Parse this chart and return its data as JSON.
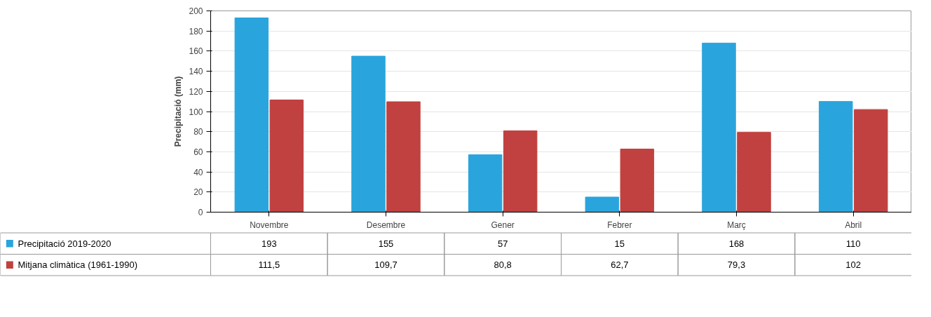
{
  "chart_data": {
    "type": "bar",
    "ylabel": "Precipitació (mm)",
    "categories": [
      "Novembre",
      "Desembre",
      "Gener",
      "Febrer",
      "Març",
      "Abril"
    ],
    "series": [
      {
        "name": "Precipitació 2019-2020",
        "color": "#2aa4dc",
        "values": [
          193,
          155,
          57,
          15,
          168,
          110
        ],
        "value_labels": [
          "193",
          "155",
          "57",
          "15",
          "168",
          "110"
        ]
      },
      {
        "name": "Mitjana climàtica (1961-1990)",
        "color": "#c0413f",
        "values": [
          111.5,
          109.7,
          80.8,
          62.7,
          79.3,
          102
        ],
        "value_labels": [
          "111,5",
          "109,7",
          "80,8",
          "62,7",
          "79,3",
          "102"
        ]
      }
    ],
    "ylim": [
      0,
      200
    ],
    "yticks": [
      0,
      20,
      40,
      60,
      80,
      100,
      120,
      140,
      160,
      180,
      200
    ],
    "grid": "y",
    "legend": "bottom",
    "data_labels": true
  }
}
